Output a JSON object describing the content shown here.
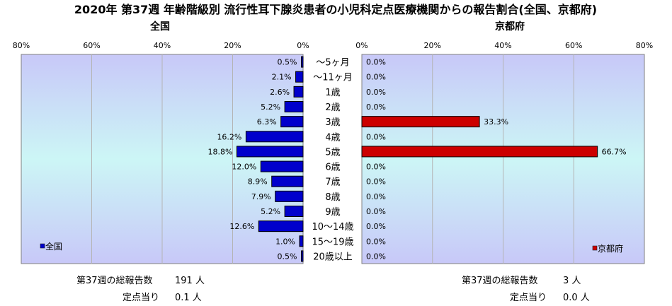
{
  "chart_data": {
    "type": "bar",
    "title": "2020年 第37週 年齢階級別 流行性耳下腺炎患者の小児科定点医療機関からの報告割合(全国、京都府)",
    "categories": [
      "～5ヶ月",
      "～11ヶ月",
      "1歳",
      "2歳",
      "3歳",
      "4歳",
      "5歳",
      "6歳",
      "7歳",
      "8歳",
      "9歳",
      "10～14歳",
      "15～19歳",
      "20歳以上"
    ],
    "axis_ticks": [
      "80%",
      "60%",
      "40%",
      "20%",
      "0%"
    ],
    "axis_ticks_right": [
      "0%",
      "20%",
      "40%",
      "60%",
      "80%"
    ],
    "xlim": [
      0,
      80
    ],
    "grid": true,
    "series": [
      {
        "name": "全国",
        "panel_title": "全国",
        "direction": "left",
        "color": "#0000cc",
        "values": [
          0.5,
          2.1,
          2.6,
          5.2,
          6.3,
          16.2,
          18.8,
          12.0,
          8.9,
          7.9,
          5.2,
          12.6,
          1.0,
          0.5
        ],
        "labels": [
          "0.5%",
          "2.1%",
          "2.6%",
          "5.2%",
          "6.3%",
          "16.2%",
          "18.8%",
          "12.0%",
          "8.9%",
          "7.9%",
          "5.2%",
          "12.6%",
          "1.0%",
          "0.5%"
        ]
      },
      {
        "name": "京都府",
        "panel_title": "京都府",
        "direction": "right",
        "color": "#cc0000",
        "values": [
          0.0,
          0.0,
          0.0,
          0.0,
          33.3,
          0.0,
          66.7,
          0.0,
          0.0,
          0.0,
          0.0,
          0.0,
          0.0,
          0.0
        ],
        "labels": [
          "0.0%",
          "0.0%",
          "0.0%",
          "0.0%",
          "33.3%",
          "0.0%",
          "66.7%",
          "0.0%",
          "0.0%",
          "0.0%",
          "0.0%",
          "0.0%",
          "0.0%",
          "0.0%"
        ]
      }
    ]
  },
  "footer": {
    "left": {
      "total_label": "第37週の総報告数",
      "total_value": "191 人",
      "per_label": "定点当り",
      "per_value": "0.1 人"
    },
    "right": {
      "total_label": "第37週の総報告数",
      "total_value": "3 人",
      "per_label": "定点当り",
      "per_value": "0.0 人"
    }
  }
}
